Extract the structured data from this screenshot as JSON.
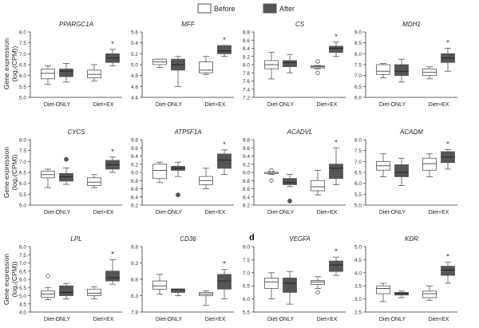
{
  "legend": {
    "entries": [
      {
        "label": "Before",
        "color": "#ffffff"
      },
      {
        "label": "After",
        "color": "#555555"
      }
    ]
  },
  "colors": {
    "before": "#ffffff",
    "after": "#555555",
    "stroke": "#555555",
    "axis": "#333333"
  },
  "ylabel_line1": "Gene expression",
  "ylabel_line2": "(log₂(CPM))",
  "panel_letters": [
    {
      "text": "d"
    }
  ],
  "chart_data": [
    {
      "type": "box",
      "title": "PPARGC1A",
      "categories": [
        "Diet-ONLY",
        "Diet+EX"
      ],
      "ylim": [
        5.0,
        8.0
      ],
      "ticks": [
        "5.0",
        "5.5",
        "6.0",
        "6.5",
        "7.0",
        "7.5",
        "8.0"
      ],
      "groups": [
        {
          "before": {
            "min": 5.6,
            "q1": 5.85,
            "median": 6.1,
            "q3": 6.3,
            "max": 6.45
          },
          "after": {
            "min": 5.7,
            "q1": 5.95,
            "median": 6.2,
            "q3": 6.3,
            "max": 6.55
          }
        },
        {
          "before": {
            "min": 5.75,
            "q1": 5.9,
            "median": 6.05,
            "q3": 6.25,
            "max": 6.5
          },
          "after": {
            "min": 6.45,
            "q1": 6.6,
            "median": 6.8,
            "q3": 7.0,
            "max": 7.2
          },
          "sig": "*"
        }
      ]
    },
    {
      "type": "box",
      "title": "MFF",
      "categories": [
        "Diet-ONLY",
        "Diet+EX"
      ],
      "ylim": [
        4.4,
        5.6
      ],
      "ticks": [
        "4.4",
        "4.6",
        "4.8",
        "5.0",
        "5.2",
        "5.4",
        "5.6"
      ],
      "groups": [
        {
          "before": {
            "min": 4.95,
            "q1": 5.0,
            "median": 5.05,
            "q3": 5.1,
            "max": 5.1
          },
          "after": {
            "min": 4.6,
            "q1": 4.9,
            "median": 5.0,
            "q3": 5.1,
            "max": 5.15
          }
        },
        {
          "before": {
            "min": 4.82,
            "q1": 4.85,
            "median": 4.9,
            "q3": 5.05,
            "max": 5.15
          },
          "after": {
            "min": 5.15,
            "q1": 5.2,
            "median": 5.25,
            "q3": 5.35,
            "max": 5.35
          },
          "sig": "*"
        }
      ]
    },
    {
      "type": "box",
      "title": "CS",
      "categories": [
        "Diet-ONLY",
        "Diet+EX"
      ],
      "ylim": [
        7.2,
        8.8
      ],
      "ticks": [
        "7.2",
        "7.4",
        "7.6",
        "7.8",
        "8.0",
        "8.2",
        "8.4",
        "8.6",
        "8.8"
      ],
      "groups": [
        {
          "before": {
            "min": 7.65,
            "q1": 7.9,
            "median": 8.0,
            "q3": 8.1,
            "max": 8.3
          },
          "after": {
            "min": 7.8,
            "q1": 7.95,
            "median": 8.05,
            "q3": 8.1,
            "max": 8.25
          }
        },
        {
          "before": {
            "min": 7.9,
            "q1": 7.92,
            "median": 7.95,
            "q3": 7.97,
            "max": 7.98,
            "outliers": [
              8.08,
              7.8
            ]
          },
          "after": {
            "min": 8.2,
            "q1": 8.3,
            "median": 8.4,
            "q3": 8.45,
            "max": 8.55
          },
          "sig": "*"
        }
      ]
    },
    {
      "type": "box",
      "title": "MDH1",
      "categories": [
        "Diet-ONLY",
        "Diet+EX"
      ],
      "ylim": [
        6.0,
        9.0
      ],
      "ticks": [
        "6.0",
        "6.5",
        "7.0",
        "7.5",
        "8.0",
        "8.5",
        "9.0"
      ],
      "groups": [
        {
          "before": {
            "min": 6.9,
            "q1": 7.05,
            "median": 7.2,
            "q3": 7.5,
            "max": 7.55
          },
          "after": {
            "min": 6.7,
            "q1": 7.0,
            "median": 7.2,
            "q3": 7.5,
            "max": 7.75
          }
        },
        {
          "before": {
            "min": 6.85,
            "q1": 7.0,
            "median": 7.15,
            "q3": 7.3,
            "max": 7.4
          },
          "after": {
            "min": 7.2,
            "q1": 7.6,
            "median": 7.8,
            "q3": 8.0,
            "max": 8.25
          },
          "sig": "*"
        }
      ]
    },
    {
      "type": "box",
      "title": "CYCS",
      "categories": [
        "Diet-ONLY",
        "Diet+EX"
      ],
      "ylim": [
        5.0,
        8.0
      ],
      "ticks": [
        "5.0",
        "5.5",
        "6.0",
        "6.5",
        "7.0",
        "7.5",
        "8.0"
      ],
      "groups": [
        {
          "before": {
            "min": 5.8,
            "q1": 6.25,
            "median": 6.4,
            "q3": 6.55,
            "max": 6.65
          },
          "after": {
            "min": 5.95,
            "q1": 6.1,
            "median": 6.3,
            "q3": 6.45,
            "max": 6.7,
            "outliers_filled": [
              7.1
            ]
          }
        },
        {
          "before": {
            "min": 5.8,
            "q1": 5.9,
            "median": 6.05,
            "q3": 6.25,
            "max": 6.4
          },
          "after": {
            "min": 6.5,
            "q1": 6.65,
            "median": 6.85,
            "q3": 7.05,
            "max": 7.2
          },
          "sig": "*"
        }
      ]
    },
    {
      "type": "box",
      "title": "ATP5F1A",
      "categories": [
        "Diet-ONLY",
        "Diet+EX"
      ],
      "ylim": [
        8.2,
        9.8
      ],
      "ticks": [
        "8.2",
        "8.4",
        "8.6",
        "8.8",
        "9.0",
        "9.2",
        "9.4",
        "9.6",
        "9.8"
      ],
      "groups": [
        {
          "before": {
            "min": 8.75,
            "q1": 8.85,
            "median": 9.05,
            "q3": 9.2,
            "max": 9.25
          },
          "after": {
            "min": 8.9,
            "q1": 9.05,
            "median": 9.1,
            "q3": 9.15,
            "max": 9.25,
            "outliers_filled": [
              8.45
            ]
          }
        },
        {
          "before": {
            "min": 8.6,
            "q1": 8.7,
            "median": 8.8,
            "q3": 8.9,
            "max": 9.1
          },
          "after": {
            "min": 8.95,
            "q1": 9.1,
            "median": 9.3,
            "q3": 9.45,
            "max": 9.55
          },
          "sig": "*"
        }
      ]
    },
    {
      "type": "box",
      "title": "ACADVL",
      "categories": [
        "Diet-ONLY",
        "Diet+EX"
      ],
      "ylim": [
        8.2,
        9.8
      ],
      "ticks": [
        "8.2",
        "8.4",
        "8.6",
        "8.8",
        "9.0",
        "9.2",
        "9.4",
        "9.6",
        "9.8"
      ],
      "groups": [
        {
          "before": {
            "min": 8.95,
            "q1": 8.97,
            "median": 9.0,
            "q3": 9.0,
            "max": 9.02,
            "outliers": [
              9.05,
              8.8
            ]
          },
          "after": {
            "min": 8.65,
            "q1": 8.7,
            "median": 8.75,
            "q3": 8.85,
            "max": 8.95,
            "outliers_filled": [
              8.3
            ]
          }
        },
        {
          "before": {
            "min": 8.45,
            "q1": 8.55,
            "median": 8.65,
            "q3": 8.8,
            "max": 9.05
          },
          "after": {
            "min": 8.7,
            "q1": 8.85,
            "median": 9.1,
            "q3": 9.2,
            "max": 9.6
          },
          "sig": "*"
        }
      ]
    },
    {
      "type": "box",
      "title": "ACADM",
      "categories": [
        "Diet-ONLY",
        "Diet+EX"
      ],
      "ylim": [
        5.0,
        8.0
      ],
      "ticks": [
        "5.0",
        "5.5",
        "6.0",
        "6.5",
        "7.0",
        "7.5",
        "8.0"
      ],
      "groups": [
        {
          "before": {
            "min": 6.3,
            "q1": 6.6,
            "median": 6.8,
            "q3": 7.0,
            "max": 7.35
          },
          "after": {
            "min": 5.9,
            "q1": 6.3,
            "median": 6.5,
            "q3": 6.85,
            "max": 7.15
          }
        },
        {
          "before": {
            "min": 6.3,
            "q1": 6.6,
            "median": 6.9,
            "q3": 7.15,
            "max": 7.35
          },
          "after": {
            "min": 6.65,
            "q1": 6.95,
            "median": 7.2,
            "q3": 7.45,
            "max": 7.55
          },
          "sig": "*"
        }
      ]
    },
    {
      "type": "box",
      "title": "LPL",
      "categories": [
        "Diet-ONLY",
        "Diet+EX"
      ],
      "ylim": [
        4.0,
        8.0
      ],
      "ticks": [
        "4.0",
        "4.5",
        "5.0",
        "5.5",
        "6.0",
        "6.5",
        "7.0",
        "7.5",
        "8.0"
      ],
      "groups": [
        {
          "before": {
            "min": 4.75,
            "q1": 4.9,
            "median": 5.1,
            "q3": 5.3,
            "max": 5.5,
            "outliers": [
              6.2
            ]
          },
          "after": {
            "min": 4.8,
            "q1": 5.0,
            "median": 5.2,
            "q3": 5.6,
            "max": 5.75
          }
        },
        {
          "before": {
            "min": 4.8,
            "q1": 5.0,
            "median": 5.15,
            "q3": 5.4,
            "max": 5.55
          },
          "after": {
            "min": 5.7,
            "q1": 5.9,
            "median": 6.1,
            "q3": 6.5,
            "max": 7.2
          },
          "sig": "*"
        }
      ]
    },
    {
      "type": "box",
      "title": "CD36",
      "categories": [
        "Diet-ONLY",
        "Diet+EX"
      ],
      "ylim": [
        7.8,
        9.8
      ],
      "ticks": [
        "7.8",
        "8.3",
        "8.8",
        "9.3",
        "9.8"
      ],
      "groups": [
        {
          "before": {
            "min": 8.35,
            "q1": 8.5,
            "median": 8.6,
            "q3": 8.75,
            "max": 8.95
          },
          "after": {
            "min": 8.3,
            "q1": 8.4,
            "median": 8.5,
            "q3": 8.5,
            "max": 8.5
          }
        },
        {
          "before": {
            "min": 8.0,
            "q1": 8.3,
            "median": 8.35,
            "q3": 8.4,
            "max": 8.45
          },
          "after": {
            "min": 8.2,
            "q1": 8.5,
            "median": 8.75,
            "q3": 8.95,
            "max": 9.1
          },
          "sig": "*"
        }
      ]
    },
    {
      "type": "box",
      "title": "VEGFA",
      "categories": [
        "Diet-ONLY",
        "Diet+EX"
      ],
      "ylim": [
        5.5,
        8.0
      ],
      "ticks": [
        "5.5",
        "6.0",
        "6.5",
        "7.0",
        "7.5",
        "8.0"
      ],
      "groups": [
        {
          "before": {
            "min": 6.0,
            "q1": 6.4,
            "median": 6.65,
            "q3": 6.8,
            "max": 7.0
          },
          "after": {
            "min": 5.8,
            "q1": 6.25,
            "median": 6.6,
            "q3": 6.8,
            "max": 7.05
          }
        },
        {
          "before": {
            "min": 6.4,
            "q1": 6.55,
            "median": 6.65,
            "q3": 6.7,
            "max": 6.85,
            "outliers": [
              6.25
            ]
          },
          "after": {
            "min": 6.9,
            "q1": 7.05,
            "median": 7.3,
            "q3": 7.45,
            "max": 7.6
          },
          "sig": "*"
        }
      ]
    },
    {
      "type": "box",
      "title": "KDR",
      "categories": [
        "Diet-ONLY",
        "Diet+EX"
      ],
      "ylim": [
        2.5,
        5.0
      ],
      "ticks": [
        "2.5",
        "3.0",
        "3.5",
        "4.0",
        "4.5",
        "5.0"
      ],
      "groups": [
        {
          "before": {
            "min": 2.9,
            "q1": 3.2,
            "median": 3.4,
            "q3": 3.5,
            "max": 3.6
          },
          "after": {
            "min": 3.05,
            "q1": 3.15,
            "median": 3.2,
            "q3": 3.25,
            "max": 3.3
          }
        },
        {
          "before": {
            "min": 2.95,
            "q1": 3.05,
            "median": 3.2,
            "q3": 3.3,
            "max": 3.5
          },
          "after": {
            "min": 3.6,
            "q1": 3.9,
            "median": 4.1,
            "q3": 4.25,
            "max": 4.4
          },
          "sig": "*"
        }
      ]
    }
  ]
}
